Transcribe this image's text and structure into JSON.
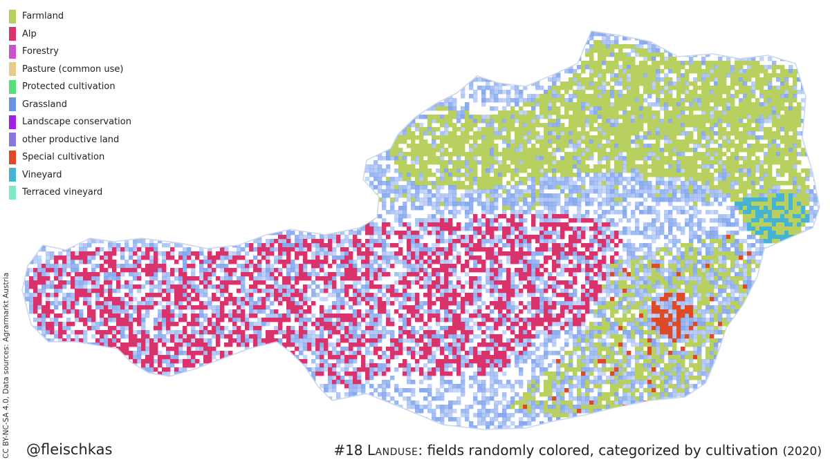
{
  "legend": {
    "items": [
      {
        "label": "Farmland",
        "color": "#b8d05f"
      },
      {
        "label": "Alp",
        "color": "#d9336b"
      },
      {
        "label": "Forestry",
        "color": "#c954c9"
      },
      {
        "label": "Pasture (common use)",
        "color": "#e8cb8c"
      },
      {
        "label": "Protected cultivation",
        "color": "#55e07a"
      },
      {
        "label": "Grassland",
        "color": "#6b93e6"
      },
      {
        "label": "Landscape conservation",
        "color": "#a11ee8"
      },
      {
        "label": "other productive land",
        "color": "#8977e0"
      },
      {
        "label": "Special cultivation",
        "color": "#dd4a26"
      },
      {
        "label": "Vineyard",
        "color": "#45b3d1"
      },
      {
        "label": "Terraced vineyard",
        "color": "#7fe8c5"
      }
    ]
  },
  "credit": "CC BY-NC-SA 4.0, Data sources: Agrarmarkt Austria",
  "handle": "@fleischkas",
  "title": {
    "prefix": "#18 ",
    "keyword": "Landuse",
    "rest": ": fields randomly colored, categorized by cultivation ",
    "year": "(2020)"
  },
  "map": {
    "background_fill": "#dfe8f4",
    "zones": [
      {
        "name": "northeast-farmland",
        "category": "Farmland"
      },
      {
        "name": "northern-grassland-belt",
        "category": "Grassland"
      },
      {
        "name": "alpine-pastures",
        "category": "Alp"
      },
      {
        "name": "southeast-mixed",
        "category": "Farmland"
      },
      {
        "name": "eastern-vineyards",
        "category": "Vineyard"
      },
      {
        "name": "southeast-special",
        "category": "Special cultivation"
      }
    ]
  }
}
